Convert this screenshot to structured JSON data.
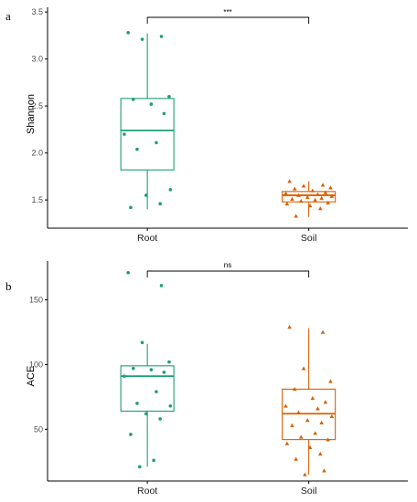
{
  "colors": {
    "root": "#1b9e77",
    "soil": "#d95f02",
    "axis": "#000000"
  },
  "chart_data": [
    {
      "type": "box",
      "panel": "a",
      "xlabel": "",
      "ylabel": "Shannon",
      "categories": [
        "Root",
        "Soil"
      ],
      "ylim": [
        1.2,
        3.55
      ],
      "yticks": [
        1.5,
        2.0,
        2.5,
        3.0,
        3.5
      ],
      "ytick_labels": [
        "1.5",
        "2.0",
        "2.5",
        "3.0",
        "3.5"
      ],
      "significance": {
        "groups": [
          "Root",
          "Soil"
        ],
        "label": "***"
      },
      "series": [
        {
          "name": "Root",
          "marker": "circle",
          "box": {
            "q1": 1.82,
            "median": 2.24,
            "q3": 2.58,
            "whisker_low": 1.4,
            "whisker_high": 3.27
          },
          "points": [
            3.28,
            3.24,
            3.21,
            2.6,
            2.57,
            2.52,
            2.42,
            2.2,
            2.11,
            2.04,
            1.61,
            1.55,
            1.46,
            1.42
          ]
        },
        {
          "name": "Soil",
          "marker": "triangle",
          "box": {
            "q1": 1.48,
            "median": 1.55,
            "q3": 1.59,
            "whisker_low": 1.32,
            "whisker_high": 1.7
          },
          "points": [
            1.7,
            1.66,
            1.65,
            1.63,
            1.62,
            1.6,
            1.58,
            1.57,
            1.56,
            1.55,
            1.54,
            1.53,
            1.52,
            1.51,
            1.5,
            1.49,
            1.47,
            1.46,
            1.44,
            1.41,
            1.33
          ]
        }
      ]
    },
    {
      "type": "box",
      "panel": "b",
      "xlabel": "",
      "ylabel": "ACE",
      "categories": [
        "Root",
        "Soil"
      ],
      "ylim": [
        10,
        180
      ],
      "yticks": [
        50,
        100,
        150
      ],
      "ytick_labels": [
        "50",
        "100",
        "150"
      ],
      "significance": {
        "groups": [
          "Root",
          "Soil"
        ],
        "label": "ns"
      },
      "series": [
        {
          "name": "Root",
          "marker": "circle",
          "box": {
            "q1": 64,
            "median": 91,
            "q3": 99,
            "whisker_low": 21,
            "whisker_high": 116
          },
          "points": [
            171,
            161,
            117,
            102,
            97,
            96,
            94,
            91,
            79,
            70,
            68,
            62,
            58,
            46,
            26,
            21
          ]
        },
        {
          "name": "Soil",
          "marker": "triangle",
          "box": {
            "q1": 42,
            "median": 62,
            "q3": 81,
            "whisker_low": 15,
            "whisker_high": 128
          },
          "points": [
            129,
            125,
            97,
            87,
            81,
            74,
            71,
            68,
            66,
            63,
            60,
            57,
            55,
            53,
            47,
            44,
            42,
            39,
            36,
            31,
            27,
            18,
            15
          ]
        }
      ]
    }
  ]
}
